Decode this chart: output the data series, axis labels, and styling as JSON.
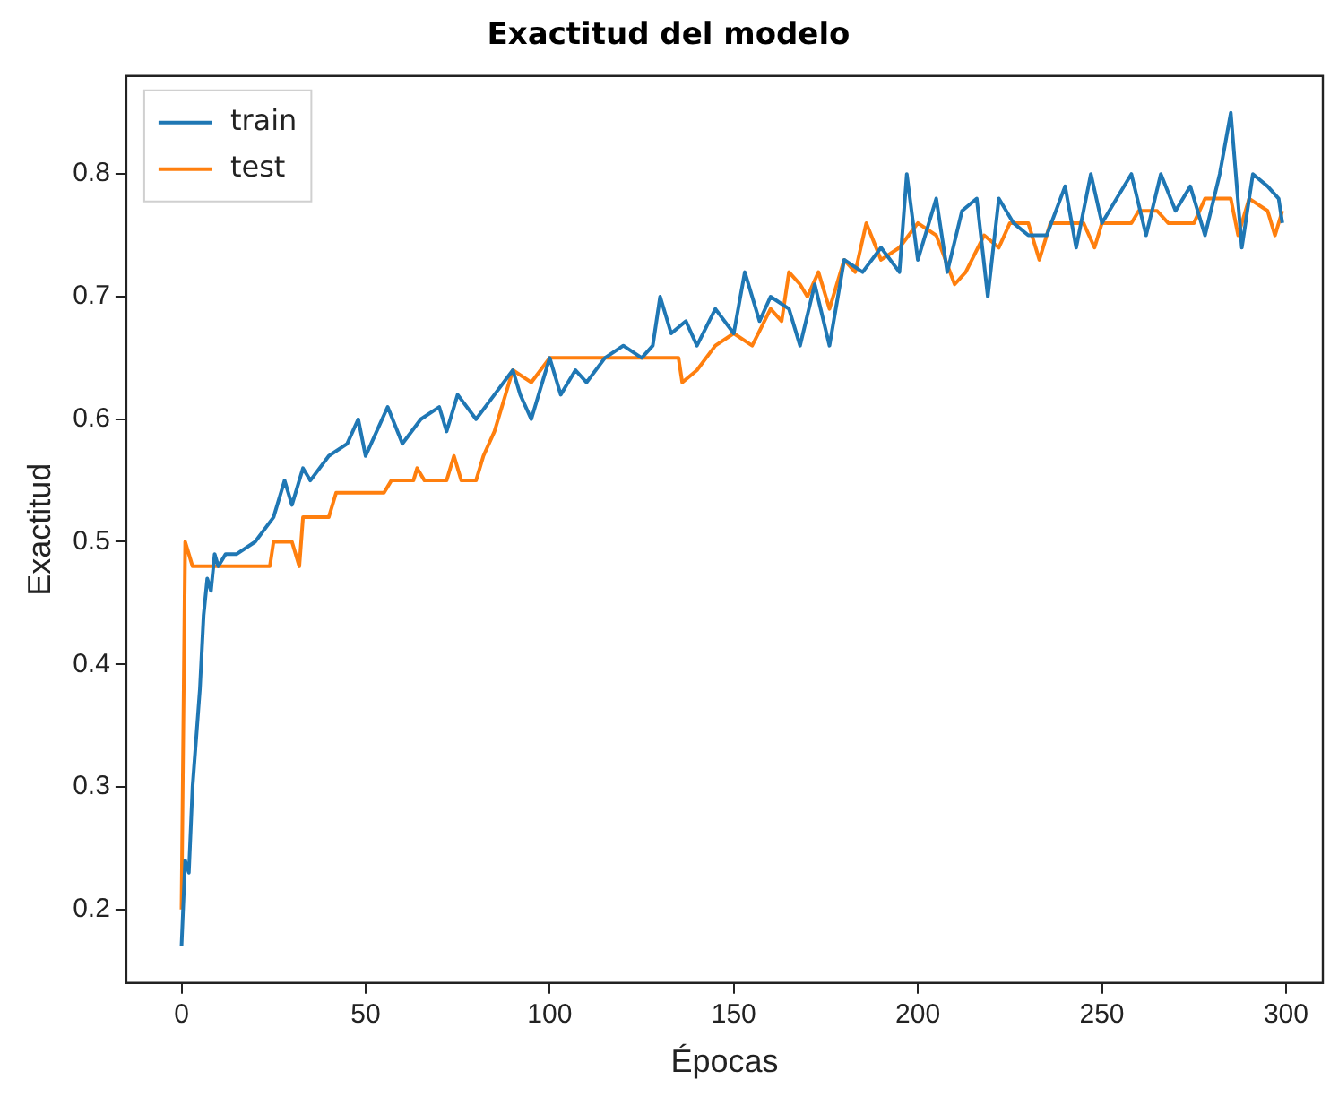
{
  "chart_data": {
    "type": "line",
    "title": "Exactitud del modelo",
    "xlabel": "Épocas",
    "ylabel": "Exactitud",
    "xlim": [
      -15,
      310
    ],
    "xticks": [
      0,
      50,
      100,
      150,
      200,
      250,
      300
    ],
    "ylim": [
      0.14,
      0.88
    ],
    "yticks": [
      0.2,
      0.3,
      0.4,
      0.5,
      0.6,
      0.7,
      0.8
    ],
    "legend": "top left",
    "grid": false,
    "marker": "none",
    "line_style": "solid",
    "series": [
      {
        "name": "train",
        "color": "#1f77b4",
        "x": [
          0,
          1,
          2,
          3,
          5,
          6,
          7,
          8,
          9,
          10,
          12,
          15,
          20,
          25,
          28,
          30,
          33,
          35,
          40,
          45,
          48,
          50,
          53,
          56,
          60,
          65,
          70,
          72,
          75,
          80,
          85,
          90,
          92,
          95,
          98,
          100,
          103,
          107,
          110,
          115,
          120,
          125,
          128,
          130,
          133,
          137,
          140,
          145,
          150,
          153,
          157,
          160,
          165,
          168,
          172,
          176,
          180,
          185,
          190,
          195,
          197,
          200,
          205,
          208,
          212,
          216,
          219,
          222,
          226,
          230,
          235,
          240,
          243,
          247,
          250,
          254,
          258,
          262,
          266,
          270,
          274,
          278,
          282,
          285,
          288,
          291,
          295,
          298,
          299
        ],
        "values": [
          0.17,
          0.24,
          0.23,
          0.3,
          0.38,
          0.44,
          0.47,
          0.46,
          0.49,
          0.48,
          0.49,
          0.49,
          0.5,
          0.52,
          0.55,
          0.53,
          0.56,
          0.55,
          0.57,
          0.58,
          0.6,
          0.57,
          0.59,
          0.61,
          0.58,
          0.6,
          0.61,
          0.59,
          0.62,
          0.6,
          0.62,
          0.64,
          0.62,
          0.6,
          0.63,
          0.65,
          0.62,
          0.64,
          0.63,
          0.65,
          0.66,
          0.65,
          0.66,
          0.7,
          0.67,
          0.68,
          0.66,
          0.69,
          0.67,
          0.72,
          0.68,
          0.7,
          0.69,
          0.66,
          0.71,
          0.66,
          0.73,
          0.72,
          0.74,
          0.72,
          0.8,
          0.73,
          0.78,
          0.72,
          0.77,
          0.78,
          0.7,
          0.78,
          0.76,
          0.75,
          0.75,
          0.79,
          0.74,
          0.8,
          0.76,
          0.78,
          0.8,
          0.75,
          0.8,
          0.77,
          0.79,
          0.75,
          0.8,
          0.85,
          0.74,
          0.8,
          0.79,
          0.78,
          0.76
        ]
      },
      {
        "name": "test",
        "color": "#ff7f0e",
        "x": [
          0,
          1,
          2,
          3,
          24,
          25,
          30,
          32,
          33,
          40,
          42,
          55,
          57,
          63,
          64,
          66,
          72,
          74,
          76,
          80,
          82,
          85,
          88,
          90,
          95,
          100,
          105,
          110,
          135,
          136,
          140,
          145,
          150,
          155,
          160,
          163,
          165,
          168,
          170,
          173,
          176,
          180,
          183,
          186,
          190,
          195,
          200,
          205,
          210,
          213,
          218,
          222,
          225,
          230,
          233,
          236,
          245,
          248,
          250,
          258,
          260,
          265,
          268,
          275,
          278,
          285,
          287,
          290,
          295,
          297,
          299
        ],
        "values": [
          0.2,
          0.5,
          0.49,
          0.48,
          0.48,
          0.5,
          0.5,
          0.48,
          0.52,
          0.52,
          0.54,
          0.54,
          0.55,
          0.55,
          0.56,
          0.55,
          0.55,
          0.57,
          0.55,
          0.55,
          0.57,
          0.59,
          0.62,
          0.64,
          0.63,
          0.65,
          0.65,
          0.65,
          0.65,
          0.63,
          0.64,
          0.66,
          0.67,
          0.66,
          0.69,
          0.68,
          0.72,
          0.71,
          0.7,
          0.72,
          0.69,
          0.73,
          0.72,
          0.76,
          0.73,
          0.74,
          0.76,
          0.75,
          0.71,
          0.72,
          0.75,
          0.74,
          0.76,
          0.76,
          0.73,
          0.76,
          0.76,
          0.74,
          0.76,
          0.76,
          0.77,
          0.77,
          0.76,
          0.76,
          0.78,
          0.78,
          0.75,
          0.78,
          0.77,
          0.75,
          0.77
        ]
      }
    ]
  }
}
